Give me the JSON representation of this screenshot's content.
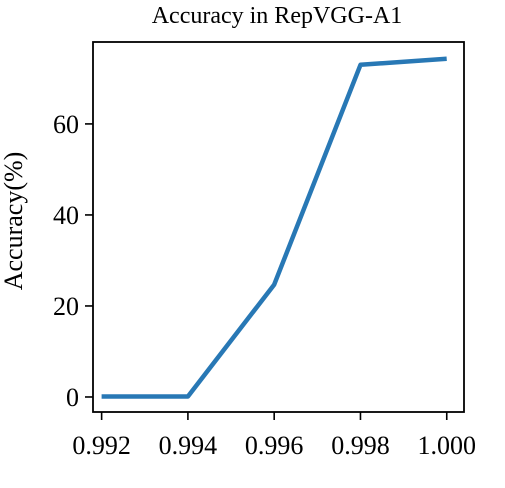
{
  "chart_data": {
    "type": "line",
    "title": "Accuracy in RepVGG-A1",
    "xlabel": "",
    "ylabel": "Accuracy(%)",
    "xlim": [
      0.9918,
      1.0004
    ],
    "ylim": [
      -3.3,
      78.0
    ],
    "xticks": [
      0.992,
      0.994,
      0.996,
      0.998,
      1.0
    ],
    "xtick_labels": [
      "0.992",
      "0.994",
      "0.996",
      "0.998",
      "1.000"
    ],
    "yticks": [
      0,
      20,
      40,
      60
    ],
    "ytick_labels": [
      "0",
      "20",
      "40",
      "60"
    ],
    "grid": false,
    "legend": null,
    "series": [
      {
        "color": "#2878b5",
        "x": [
          0.992,
          0.994,
          0.996,
          0.998,
          1.0
        ],
        "y": [
          0.1,
          0.1,
          24.7,
          73.0,
          74.3
        ]
      }
    ]
  }
}
